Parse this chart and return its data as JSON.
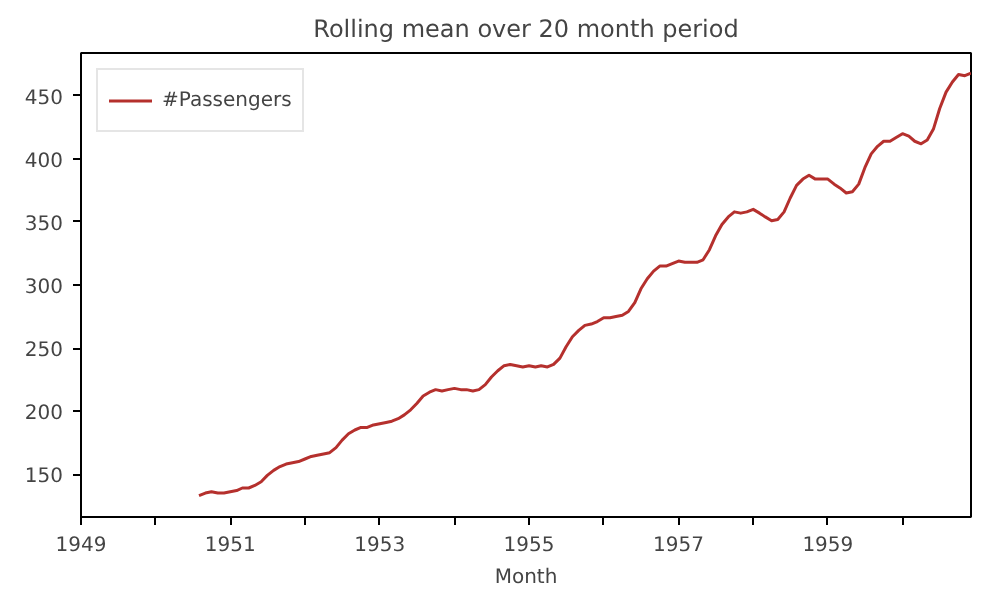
{
  "chart_data": {
    "type": "line",
    "title": "Rolling mean over 20 month period",
    "xlabel": "Month",
    "x": [
      "1950-08",
      "1950-09",
      "1950-10",
      "1950-11",
      "1950-12",
      "1951-01",
      "1951-02",
      "1951-03",
      "1951-04",
      "1951-05",
      "1951-06",
      "1951-07",
      "1951-08",
      "1951-09",
      "1951-10",
      "1951-11",
      "1951-12",
      "1952-01",
      "1952-02",
      "1952-03",
      "1952-04",
      "1952-05",
      "1952-06",
      "1952-07",
      "1952-08",
      "1952-09",
      "1952-10",
      "1952-11",
      "1952-12",
      "1953-01",
      "1953-02",
      "1953-03",
      "1953-04",
      "1953-05",
      "1953-06",
      "1953-07",
      "1953-08",
      "1953-09",
      "1953-10",
      "1953-11",
      "1953-12",
      "1954-01",
      "1954-02",
      "1954-03",
      "1954-04",
      "1954-05",
      "1954-06",
      "1954-07",
      "1954-08",
      "1954-09",
      "1954-10",
      "1954-11",
      "1954-12",
      "1955-01",
      "1955-02",
      "1955-03",
      "1955-04",
      "1955-05",
      "1955-06",
      "1955-07",
      "1955-08",
      "1955-09",
      "1955-10",
      "1955-11",
      "1955-12",
      "1956-01",
      "1956-02",
      "1956-03",
      "1956-04",
      "1956-05",
      "1956-06",
      "1956-07",
      "1956-08",
      "1956-09",
      "1956-10",
      "1956-11",
      "1956-12",
      "1957-01",
      "1957-02",
      "1957-03",
      "1957-04",
      "1957-05",
      "1957-06",
      "1957-07",
      "1957-08",
      "1957-09",
      "1957-10",
      "1957-11",
      "1957-12",
      "1958-01",
      "1958-02",
      "1958-03",
      "1958-04",
      "1958-05",
      "1958-06",
      "1958-07",
      "1958-08",
      "1958-09",
      "1958-10",
      "1958-11",
      "1958-12",
      "1959-01",
      "1959-02",
      "1959-03",
      "1959-04",
      "1959-05",
      "1959-06",
      "1959-07",
      "1959-08",
      "1959-09",
      "1959-10",
      "1959-11",
      "1959-12",
      "1960-01",
      "1960-02",
      "1960-03",
      "1960-04",
      "1960-05",
      "1960-06",
      "1960-07",
      "1960-08",
      "1960-09",
      "1960-10",
      "1960-11",
      "1960-12"
    ],
    "series": [
      {
        "name": "#Passengers",
        "color": "#b5302d",
        "values": [
          133,
          135,
          136,
          135,
          135,
          136,
          137,
          139,
          139,
          141,
          144,
          149,
          153,
          156,
          158,
          159,
          160,
          162,
          164,
          165,
          166,
          167,
          171,
          177,
          182,
          185,
          187,
          187,
          189,
          190,
          191,
          192,
          194,
          197,
          201,
          206,
          212,
          215,
          217,
          216,
          217,
          218,
          217,
          217,
          216,
          217,
          221,
          227,
          232,
          236,
          237,
          236,
          235,
          236,
          235,
          236,
          235,
          237,
          242,
          251,
          259,
          264,
          268,
          269,
          271,
          274,
          274,
          275,
          276,
          279,
          286,
          297,
          305,
          311,
          315,
          315,
          317,
          319,
          318,
          318,
          318,
          320,
          328,
          339,
          348,
          354,
          358,
          357,
          358,
          360,
          357,
          354,
          351,
          352,
          358,
          369,
          379,
          384,
          387,
          384,
          384,
          384,
          380,
          377,
          373,
          374,
          380,
          393,
          404,
          410,
          414,
          414,
          417,
          420,
          418,
          414,
          412,
          415,
          424,
          440,
          453,
          461,
          467,
          466,
          468
        ]
      }
    ],
    "xlim": [
      "1949-01",
      "1960-12"
    ],
    "xticks": [
      "1949",
      {
        "value": "1950",
        "label": null
      },
      "1951",
      {
        "value": "1952",
        "label": null
      },
      "1953",
      {
        "value": "1954",
        "label": null
      },
      "1955",
      {
        "value": "1956",
        "label": null
      },
      "1957",
      {
        "value": "1958",
        "label": null
      },
      "1959",
      {
        "value": "1960",
        "label": null
      }
    ],
    "ylim": [
      116,
      484
    ],
    "yticks": [
      150,
      200,
      250,
      300,
      350,
      400,
      450
    ],
    "grid": false,
    "legend": "top left",
    "marker": "none",
    "line_style": "solid"
  }
}
